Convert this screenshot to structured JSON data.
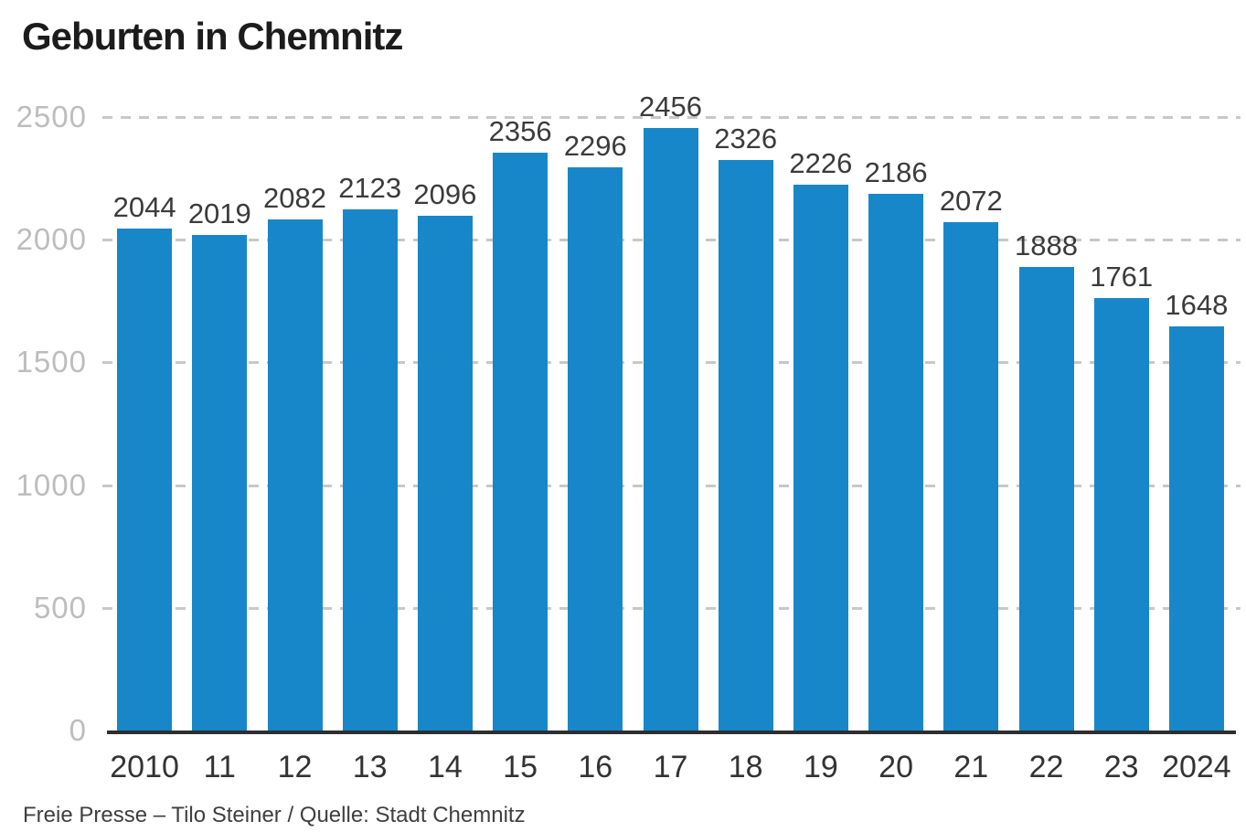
{
  "title": "Geburten in Chemnitz",
  "footer": "Freie Presse – Tilo Steiner / Quelle: Stadt Chemnitz",
  "colors": {
    "bar": "#1787c9",
    "grid": "#c8c8c8",
    "axis": "#2e2e2e",
    "ytick_label": "#bdbdbd",
    "value_label": "#3b3b3b",
    "xtick_label": "#333333",
    "title": "#1c1c1c",
    "background": "#ffffff"
  },
  "chart_data": {
    "type": "bar",
    "title": "Geburten in Chemnitz",
    "categories": [
      "2010",
      "11",
      "12",
      "13",
      "14",
      "15",
      "16",
      "17",
      "18",
      "19",
      "20",
      "21",
      "22",
      "23",
      "2024"
    ],
    "values": [
      2044,
      2019,
      2082,
      2123,
      2096,
      2356,
      2296,
      2456,
      2326,
      2226,
      2186,
      2072,
      1888,
      1761,
      1648
    ],
    "bar_value_labels": [
      "2044",
      "2019",
      "2082",
      "2123",
      "2096",
      "2356",
      "2296",
      "2456",
      "2326",
      "2226",
      "2186",
      "2072",
      "1888",
      "1761",
      "1648"
    ],
    "xlabel": "",
    "ylabel": "",
    "ylim": [
      0,
      2500
    ],
    "yticks": [
      0,
      500,
      1000,
      1500,
      2000,
      2500
    ],
    "ytick_labels": [
      "0",
      "500",
      "1000",
      "1500",
      "2000",
      "2500"
    ],
    "grid": "horizontal-dashed",
    "legend": "none",
    "source": "Freie Presse – Tilo Steiner / Quelle: Stadt Chemnitz"
  }
}
